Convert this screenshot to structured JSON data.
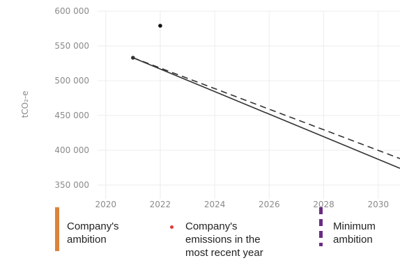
{
  "chart_data": {
    "type": "line",
    "title": "",
    "xlabel": "",
    "ylabel": "tCO₂-e",
    "xlim": [
      2019.7,
      2030.8
    ],
    "ylim": [
      330000,
      600000
    ],
    "x_ticks": [
      2020,
      2022,
      2024,
      2026,
      2028,
      2030
    ],
    "x_tick_labels": [
      "2020",
      "2022",
      "2024",
      "2026",
      "2028",
      "2030"
    ],
    "y_ticks": [
      350000,
      400000,
      450000,
      500000,
      550000,
      600000
    ],
    "y_tick_labels": [
      "350 000",
      "400 000",
      "450 000",
      "500 000",
      "550 000",
      "600 000"
    ],
    "grid": true,
    "series": [
      {
        "name": "Company's ambition",
        "style": "solid",
        "color": "#333333",
        "x": [
          2021,
          2030.8
        ],
        "y": [
          533000,
          374000
        ]
      },
      {
        "name": "Minimum ambition",
        "style": "dashed",
        "color": "#333333",
        "x": [
          2021,
          2030.8
        ],
        "y": [
          533000,
          388000
        ]
      },
      {
        "name": "Company's emissions in the most recent year",
        "style": "point",
        "color": "#111111",
        "x": [
          2022
        ],
        "y": [
          579000
        ]
      },
      {
        "name": "",
        "style": "point",
        "color": "#333333",
        "x": [
          2021
        ],
        "y": [
          533000
        ]
      }
    ],
    "legend_position": "bottom"
  },
  "legend": [
    {
      "label": "Company's\nambition",
      "marker": "solid-bar",
      "color": "#d9843a"
    },
    {
      "label": "Company's\nemissions in the\nmost recent year",
      "marker": "dot",
      "color": "#e53935"
    },
    {
      "label": "Minimum\nambition",
      "marker": "dashed-bar",
      "color": "#6a2c82"
    }
  ]
}
